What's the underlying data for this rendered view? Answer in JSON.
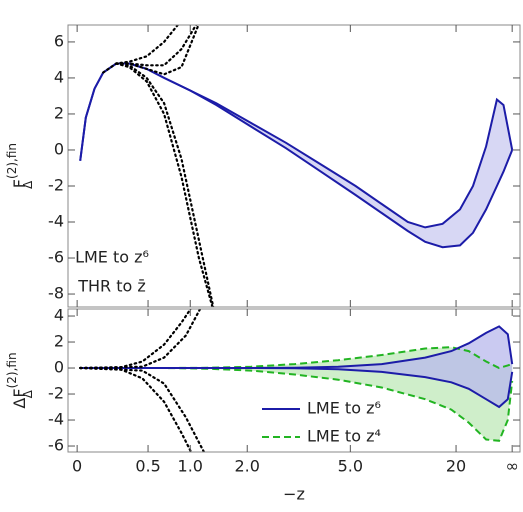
{
  "chart_data": [
    {
      "type": "line",
      "ylabel": {
        "base": "F",
        "sub": "Δ",
        "sup": "(2),fin"
      },
      "xlim": [
        -0.021,
        1.018
      ],
      "ylim": [
        -8.72,
        6.94
      ],
      "yticks": [
        -8,
        -6,
        -4,
        -2,
        0,
        2,
        4,
        6
      ],
      "annotations": [
        "LME to z⁶",
        "THR to z̄"
      ],
      "bands": [
        {
          "color": "#1c1ca8",
          "fill": "#c9c9f0",
          "dash": "none",
          "x": [
            0.007,
            0.02,
            0.04,
            0.06,
            0.09,
            0.12,
            0.16,
            0.2,
            0.26,
            0.32,
            0.4,
            0.48,
            0.56,
            0.64,
            0.7,
            0.76,
            0.8,
            0.84,
            0.88,
            0.91,
            0.94,
            0.965,
            0.98,
            1.0
          ],
          "upper": [
            -0.6,
            1.8,
            3.4,
            4.3,
            4.8,
            4.8,
            4.5,
            4.0,
            3.3,
            2.6,
            1.5,
            0.4,
            -0.8,
            -2.0,
            -3.0,
            -4.0,
            -4.3,
            -4.1,
            -3.3,
            -2.0,
            0.2,
            2.8,
            2.5,
            0
          ],
          "lower": [
            -0.6,
            1.8,
            3.4,
            4.3,
            4.8,
            4.8,
            4.5,
            4.0,
            3.3,
            2.5,
            1.3,
            0.1,
            -1.2,
            -2.5,
            -3.5,
            -4.5,
            -5.1,
            -5.4,
            -5.3,
            -4.6,
            -3.3,
            -2.0,
            -1.2,
            0
          ]
        }
      ],
      "series": [
        {
          "color": "#000000",
          "dash": "dotted",
          "x": [
            0.06,
            0.09,
            0.12,
            0.16,
            0.2,
            0.24
          ],
          "values": [
            4.3,
            4.8,
            4.9,
            5.2,
            6.0,
            7.2
          ]
        },
        {
          "color": "#000000",
          "dash": "dotted",
          "x": [
            0.09,
            0.12,
            0.16,
            0.2,
            0.24,
            0.28
          ],
          "values": [
            4.8,
            4.8,
            4.7,
            4.7,
            5.6,
            7.2
          ]
        },
        {
          "color": "#000000",
          "dash": "dotted",
          "x": [
            0.09,
            0.12,
            0.16,
            0.2,
            0.24,
            0.28
          ],
          "values": [
            4.8,
            4.8,
            4.5,
            4.2,
            4.6,
            7.0
          ]
        },
        {
          "color": "#000000",
          "dash": "dotted",
          "x": [
            0.09,
            0.12,
            0.16,
            0.2,
            0.24,
            0.28,
            0.32
          ],
          "values": [
            4.8,
            4.6,
            3.8,
            2.0,
            -1.5,
            -6.0,
            -9.5
          ]
        },
        {
          "color": "#000000",
          "dash": "dotted",
          "x": [
            0.09,
            0.12,
            0.16,
            0.2,
            0.24,
            0.28,
            0.32
          ],
          "values": [
            4.8,
            4.7,
            4.0,
            2.6,
            -0.5,
            -5.0,
            -9.5
          ]
        }
      ]
    },
    {
      "type": "line",
      "ylabel": {
        "base": "ΔF",
        "sub": "Δ",
        "sup": "(2),fin"
      },
      "xlabel": "−z",
      "xlim": [
        -0.021,
        1.018
      ],
      "ylim": [
        -6.46,
        4.54
      ],
      "yticks": [
        -6,
        -4,
        -2,
        0,
        2,
        4
      ],
      "xticks": [
        0,
        {
          "value": 0.163,
          "label": "0.5"
        },
        {
          "value": 0.26,
          "label": "1.0"
        },
        {
          "value": 0.391,
          "label": "2.0"
        },
        {
          "value": 0.628,
          "label": "5.0"
        },
        {
          "value": 0.871,
          "label": "20"
        },
        {
          "value": 1,
          "label": "∞"
        }
      ],
      "legend": "lower right",
      "bands": [
        {
          "name": "LME to z⁴",
          "color": "#22b422",
          "fill": "#bfe8b8",
          "dash": "dashed",
          "x": [
            0.007,
            0.1,
            0.2,
            0.3,
            0.4,
            0.5,
            0.6,
            0.7,
            0.8,
            0.86,
            0.9,
            0.94,
            0.97,
            0.99,
            1.0
          ],
          "upper": [
            0,
            0,
            0,
            0.02,
            0.1,
            0.3,
            0.6,
            1.0,
            1.5,
            1.6,
            1.3,
            0.5,
            0.0,
            0.2,
            0.3
          ],
          "lower": [
            0,
            0,
            0,
            -0.05,
            -0.2,
            -0.5,
            -0.9,
            -1.5,
            -2.4,
            -3.2,
            -4.2,
            -5.5,
            -5.6,
            -4.0,
            -1.0
          ]
        },
        {
          "name": "LME to z⁶",
          "color": "#1c1ca8",
          "fill": "#b8b8ec",
          "dash": "none",
          "x": [
            0.007,
            0.1,
            0.2,
            0.3,
            0.4,
            0.5,
            0.6,
            0.7,
            0.8,
            0.86,
            0.9,
            0.94,
            0.97,
            0.99,
            1.0
          ],
          "upper": [
            0,
            0,
            0,
            0,
            0,
            0.02,
            0.1,
            0.3,
            0.8,
            1.3,
            1.9,
            2.7,
            3.2,
            2.6,
            0.3
          ],
          "lower": [
            0,
            0,
            0,
            0,
            0,
            -0.02,
            -0.1,
            -0.3,
            -0.7,
            -1.1,
            -1.6,
            -2.4,
            -3.0,
            -2.4,
            -0.3
          ]
        }
      ],
      "series": [
        {
          "color": "#000000",
          "dash": "dotted",
          "x": [
            0.007,
            0.1,
            0.15,
            0.2,
            0.24,
            0.27
          ],
          "values": [
            0,
            0.05,
            0.5,
            1.8,
            3.5,
            5.0
          ]
        },
        {
          "color": "#000000",
          "dash": "dotted",
          "x": [
            0.007,
            0.15,
            0.2,
            0.25,
            0.29
          ],
          "values": [
            0,
            0.1,
            0.8,
            2.5,
            5.0
          ]
        },
        {
          "color": "#000000",
          "dash": "dotted",
          "x": [
            0.007,
            0.1,
            0.15,
            0.2,
            0.24,
            0.27
          ],
          "values": [
            0,
            -0.1,
            -0.8,
            -2.6,
            -5,
            -7
          ]
        },
        {
          "color": "#000000",
          "dash": "dotted",
          "x": [
            0.007,
            0.15,
            0.2,
            0.25,
            0.3
          ],
          "values": [
            0,
            -0.2,
            -1.2,
            -3.8,
            -7
          ]
        }
      ]
    }
  ]
}
